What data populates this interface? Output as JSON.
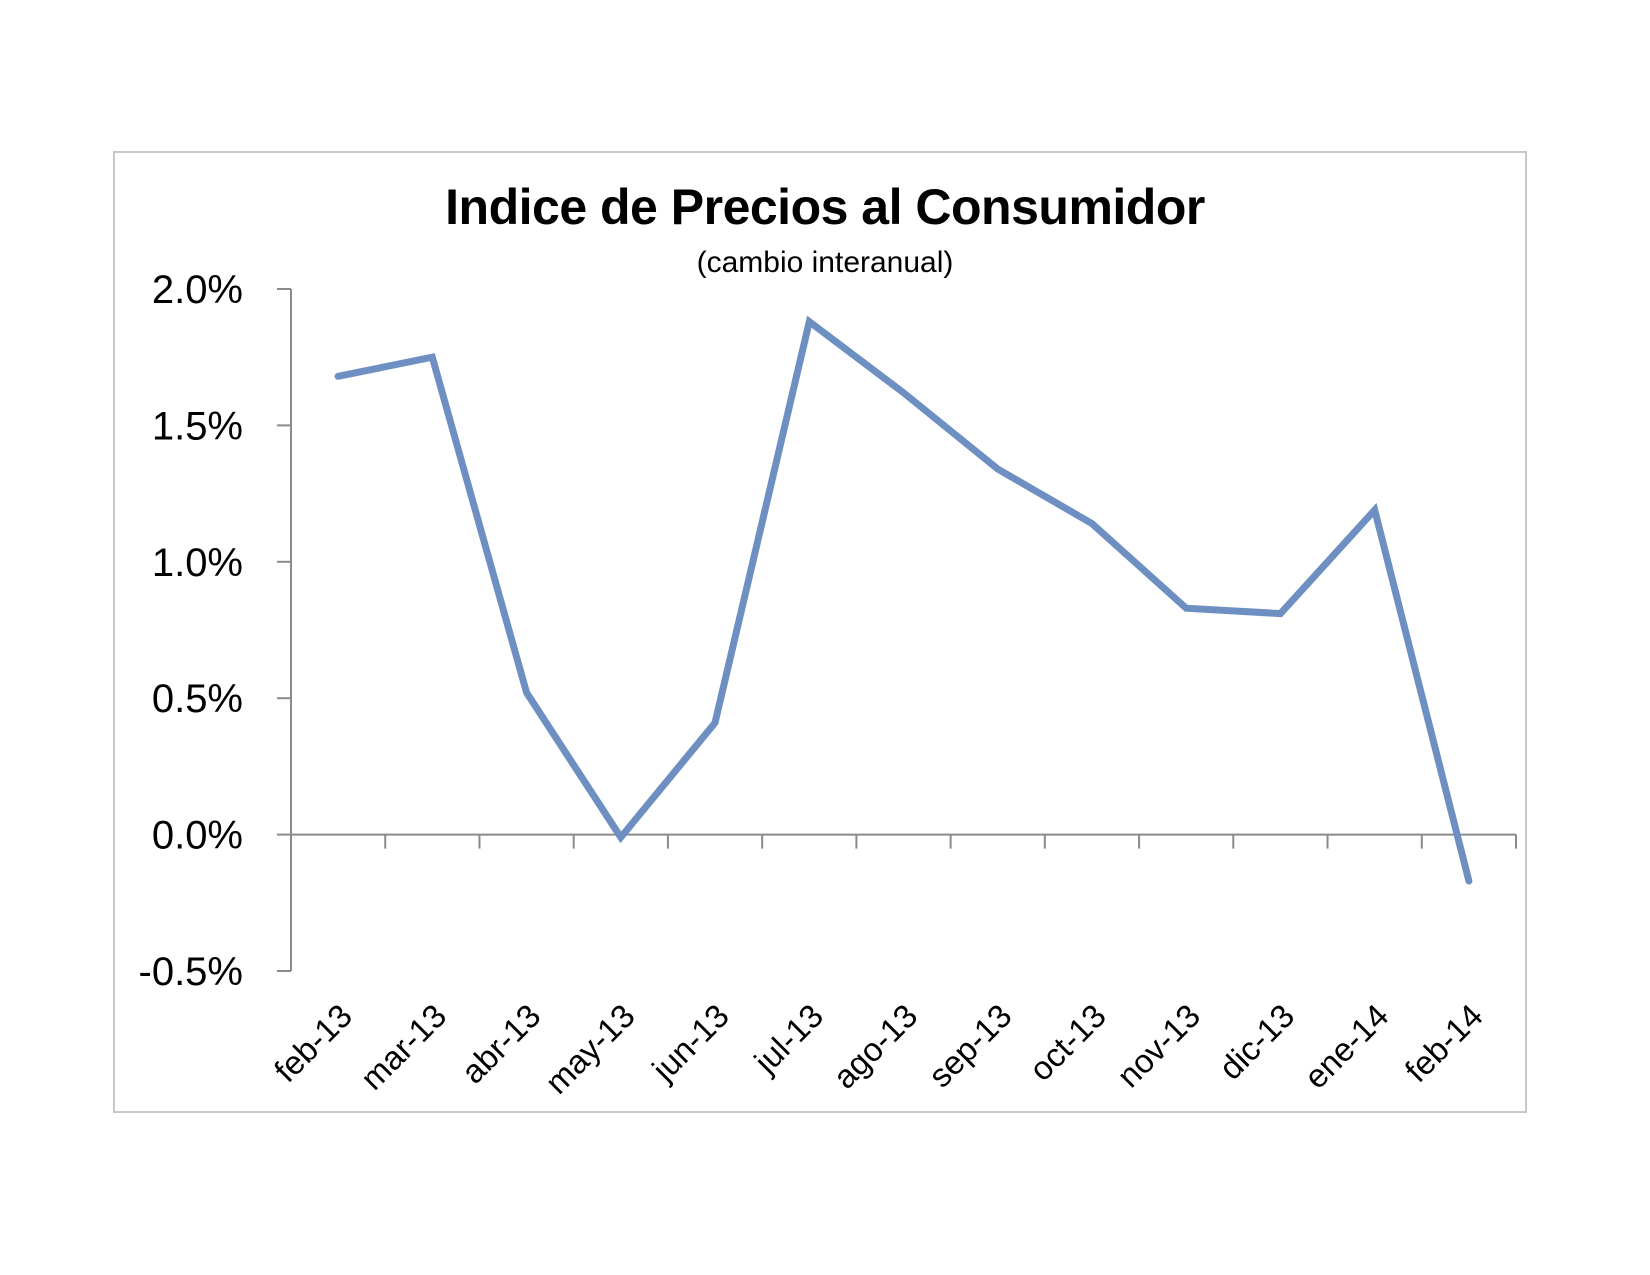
{
  "chart_data": {
    "type": "line",
    "title": "Indice de Precios al Consumidor",
    "subtitle": "(cambio interanual)",
    "xlabel": "",
    "ylabel": "",
    "categories": [
      "feb-13",
      "mar-13",
      "abr-13",
      "may-13",
      "jun-13",
      "jul-13",
      "ago-13",
      "sep-13",
      "oct-13",
      "nov-13",
      "dic-13",
      "ene-14",
      "feb-14"
    ],
    "series": [
      {
        "values": [
          1.68,
          1.75,
          0.52,
          -0.01,
          0.41,
          1.88,
          1.62,
          1.34,
          1.14,
          0.83,
          0.81,
          1.19,
          -0.17
        ]
      }
    ],
    "ylim": [
      -0.5,
      2.0
    ],
    "yticks": [
      -0.5,
      0.0,
      0.5,
      1.0,
      1.5,
      2.0
    ],
    "ytick_labels": [
      "-0.5%",
      "0.0%",
      "0.5%",
      "1.0%",
      "1.5%",
      "2.0%"
    ],
    "y_unit": "%",
    "grid": false,
    "legend": "none",
    "line_color": "#6d8fc2"
  }
}
